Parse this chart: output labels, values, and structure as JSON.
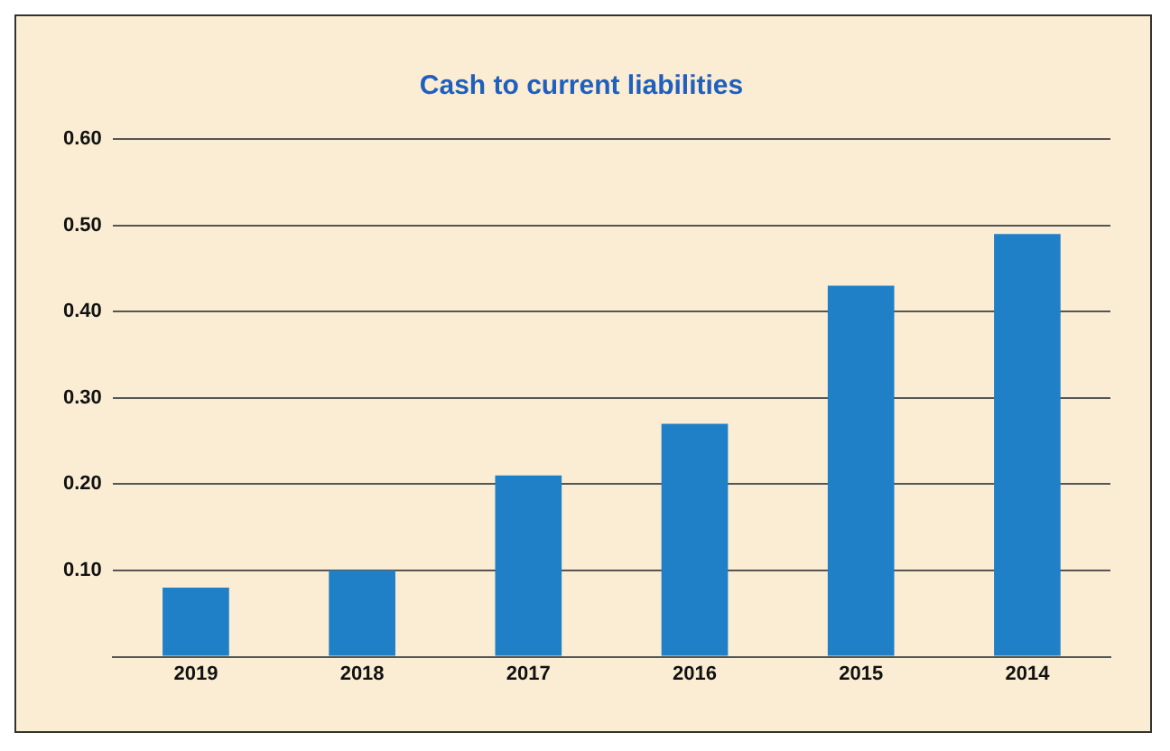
{
  "chart_data": {
    "type": "bar",
    "title": "Cash to current liabilities",
    "categories": [
      "2019",
      "2018",
      "2017",
      "2016",
      "2015",
      "2014"
    ],
    "values": [
      0.08,
      0.1,
      0.21,
      0.27,
      0.43,
      0.49
    ],
    "color": "#1f80c8",
    "ylim": [
      0,
      0.6
    ],
    "yticks": [
      {
        "value": 0,
        "label": null
      },
      {
        "value": 0.1,
        "label": "0.10"
      },
      {
        "value": 0.2,
        "label": "0.20"
      },
      {
        "value": 0.3,
        "label": "0.30"
      },
      {
        "value": 0.4,
        "label": "0.40"
      },
      {
        "value": 0.5,
        "label": "0.50"
      },
      {
        "value": 0.6,
        "label": "0.60"
      }
    ],
    "grid": "y",
    "legend": false
  }
}
